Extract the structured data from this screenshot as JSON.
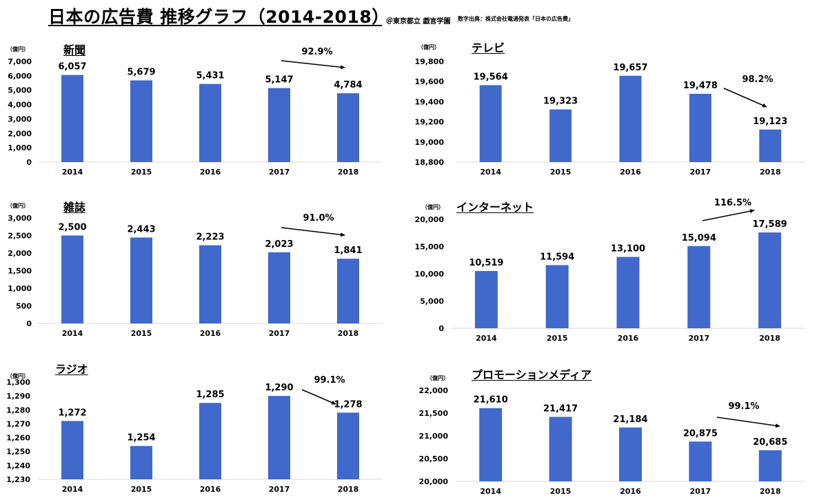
{
  "header": {
    "title": "日本の広告費 推移グラフ（2014-2018）",
    "credit": "＠東京都立 戯言学園",
    "source": "数字出典：株式会社電通発表「日本の広告費」"
  },
  "chart_data": [
    {
      "type": "bar",
      "title": "新聞",
      "unit": "（億円）",
      "categories": [
        "2014",
        "2015",
        "2016",
        "2017",
        "2018"
      ],
      "values": [
        6057,
        5679,
        5431,
        5147,
        4784
      ],
      "value_labels": [
        "6,057",
        "5,679",
        "5,431",
        "5,147",
        "4,784"
      ],
      "ylim": [
        0,
        7000
      ],
      "yticks": [
        0,
        1000,
        2000,
        3000,
        4000,
        5000,
        6000,
        7000
      ],
      "ytick_labels": [
        "0",
        "1,000",
        "2,000",
        "3,000",
        "4,000",
        "5,000",
        "6,000",
        "7,000"
      ],
      "annotation": "92.9%",
      "color": "#4169CC"
    },
    {
      "type": "bar",
      "title": "テレビ",
      "unit": "（億円）",
      "categories": [
        "2014",
        "2015",
        "2016",
        "2017",
        "2018"
      ],
      "values": [
        19564,
        19323,
        19657,
        19478,
        19123
      ],
      "value_labels": [
        "19,564",
        "19,323",
        "19,657",
        "19,478",
        "19,123"
      ],
      "ylim": [
        18800,
        19800
      ],
      "yticks": [
        18800,
        19000,
        19200,
        19400,
        19600,
        19800
      ],
      "ytick_labels": [
        "18,800",
        "19,000",
        "19,200",
        "19,400",
        "19,600",
        "19,800"
      ],
      "annotation": "98.2%",
      "color": "#4169CC"
    },
    {
      "type": "bar",
      "title": "雑誌",
      "unit": "（億円）",
      "categories": [
        "2014",
        "2015",
        "2016",
        "2017",
        "2018"
      ],
      "values": [
        2500,
        2443,
        2223,
        2023,
        1841
      ],
      "value_labels": [
        "2,500",
        "2,443",
        "2,223",
        "2,023",
        "1,841"
      ],
      "ylim": [
        0,
        3000
      ],
      "yticks": [
        0,
        500,
        1000,
        1500,
        2000,
        2500,
        3000
      ],
      "ytick_labels": [
        "0",
        "500",
        "1,000",
        "1,500",
        "2,000",
        "2,500",
        "3,000"
      ],
      "annotation": "91.0%",
      "color": "#4169CC"
    },
    {
      "type": "bar",
      "title": "インターネット",
      "unit": "（億円）",
      "categories": [
        "2014",
        "2015",
        "2016",
        "2017",
        "2018"
      ],
      "values": [
        10519,
        11594,
        13100,
        15094,
        17589
      ],
      "value_labels": [
        "10,519",
        "11,594",
        "13,100",
        "15,094",
        "17,589"
      ],
      "ylim": [
        0,
        20000
      ],
      "yticks": [
        0,
        5000,
        10000,
        15000,
        20000
      ],
      "ytick_labels": [
        "0",
        "5,000",
        "10,000",
        "15,000",
        "20,000"
      ],
      "annotation": "116.5%",
      "color": "#4169CC"
    },
    {
      "type": "bar",
      "title": "ラジオ",
      "unit": "（億円）",
      "categories": [
        "2014",
        "2015",
        "2016",
        "2017",
        "2018"
      ],
      "values": [
        1272,
        1254,
        1285,
        1290,
        1278
      ],
      "value_labels": [
        "1,272",
        "1,254",
        "1,285",
        "1,290",
        "1,278"
      ],
      "ylim": [
        1230,
        1300
      ],
      "yticks": [
        1230,
        1240,
        1250,
        1260,
        1270,
        1280,
        1290,
        1300
      ],
      "ytick_labels": [
        "1,230",
        "1,240",
        "1,250",
        "1,260",
        "1,270",
        "1,280",
        "1,290",
        "1,300"
      ],
      "annotation": "99.1%",
      "color": "#4169CC"
    },
    {
      "type": "bar",
      "title": "プロモーションメディア",
      "unit": "（億円）",
      "categories": [
        "2014",
        "2015",
        "2016",
        "2017",
        "2018"
      ],
      "values": [
        21610,
        21417,
        21184,
        20875,
        20685
      ],
      "value_labels": [
        "21,610",
        "21,417",
        "21,184",
        "20,875",
        "20,685"
      ],
      "ylim": [
        20000,
        22000
      ],
      "yticks": [
        20000,
        20500,
        21000,
        21500,
        22000
      ],
      "ytick_labels": [
        "20,000",
        "20,500",
        "21,000",
        "21,500",
        "22,000"
      ],
      "annotation": "99.1%",
      "color": "#4169CC"
    }
  ]
}
